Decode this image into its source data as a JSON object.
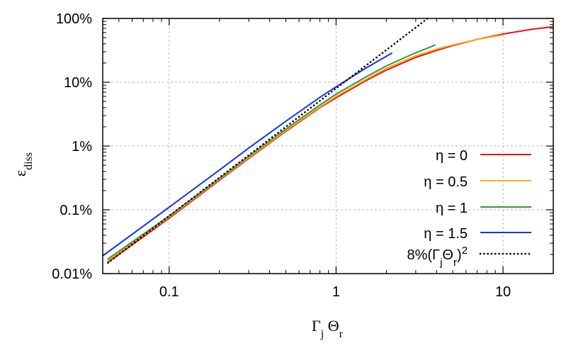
{
  "chart_data": {
    "type": "line",
    "xscale": "log",
    "yscale": "log",
    "xlim": [
      0.04,
      20
    ],
    "ylim": [
      0.0001,
      1
    ],
    "grid": true,
    "legend_position": "bottom-right",
    "xlabel": {
      "main": "Γ",
      "sub1": "j",
      "mid": " Θ",
      "sub2": "r"
    },
    "ylabel": {
      "main": "ε",
      "sub": "diss"
    },
    "x_ticks": [
      {
        "value": 0.1,
        "label": "0.1"
      },
      {
        "value": 1,
        "label": "1"
      },
      {
        "value": 10,
        "label": "10"
      }
    ],
    "y_ticks": [
      {
        "value": 0.0001,
        "label": "0.01%"
      },
      {
        "value": 0.001,
        "label": "0.1%"
      },
      {
        "value": 0.01,
        "label": "1%"
      },
      {
        "value": 0.1,
        "label": "10%"
      },
      {
        "value": 1,
        "label": "100%"
      }
    ],
    "series": [
      {
        "name": "η = 0",
        "color": "#ee1111",
        "style": "solid",
        "x": [
          0.043,
          0.1,
          0.2,
          0.3,
          0.5,
          0.8,
          1.0,
          1.5,
          2.0,
          3.0,
          4.0,
          5.0,
          7.0,
          10.0,
          15.0,
          20.0
        ],
        "y": [
          0.00015,
          0.00074,
          0.0029,
          0.0064,
          0.017,
          0.04,
          0.057,
          0.105,
          0.155,
          0.245,
          0.315,
          0.375,
          0.47,
          0.57,
          0.68,
          0.74
        ]
      },
      {
        "name": "η = 0.5",
        "color": "#ffaa22",
        "style": "solid",
        "x": [
          0.043,
          0.1,
          0.2,
          0.3,
          0.5,
          0.8,
          1.0,
          1.5,
          2.0,
          3.0,
          4.0,
          5.0,
          7.0,
          10.0
        ],
        "y": [
          0.00016,
          0.00077,
          0.003,
          0.0066,
          0.0175,
          0.041,
          0.06,
          0.11,
          0.165,
          0.26,
          0.33,
          0.385,
          0.47,
          0.55
        ]
      },
      {
        "name": "η = 1",
        "color": "#33993a",
        "style": "solid",
        "x": [
          0.043,
          0.1,
          0.2,
          0.3,
          0.5,
          0.8,
          1.0,
          1.5,
          2.0,
          3.0,
          3.9
        ],
        "y": [
          0.00017,
          0.0008,
          0.0031,
          0.0069,
          0.0185,
          0.044,
          0.065,
          0.12,
          0.18,
          0.29,
          0.38
        ]
      },
      {
        "name": "η = 1.5",
        "color": "#1133ee",
        "style": "solid",
        "x": [
          0.04,
          0.1,
          0.2,
          0.3,
          0.5,
          0.8,
          1.0,
          1.5,
          2.15
        ],
        "y": [
          0.00019,
          0.0011,
          0.0042,
          0.0093,
          0.0245,
          0.058,
          0.085,
          0.165,
          0.285
        ]
      },
      {
        "name": "8%(ΓjΘr)²",
        "color": "#000000",
        "style": "dotted",
        "x": [
          0.043,
          3.7
        ],
        "y": [
          0.000148,
          1.0952
        ]
      }
    ],
    "legend": [
      {
        "text": "η = 0"
      },
      {
        "text": "η = 0.5"
      },
      {
        "text": "η = 1"
      },
      {
        "text": "η = 1.5"
      },
      {
        "pre": "8%(Γ",
        "sub1": "j",
        "mid": "Θ",
        "sub2": "r",
        "post": ")",
        "sup": "2"
      }
    ]
  }
}
